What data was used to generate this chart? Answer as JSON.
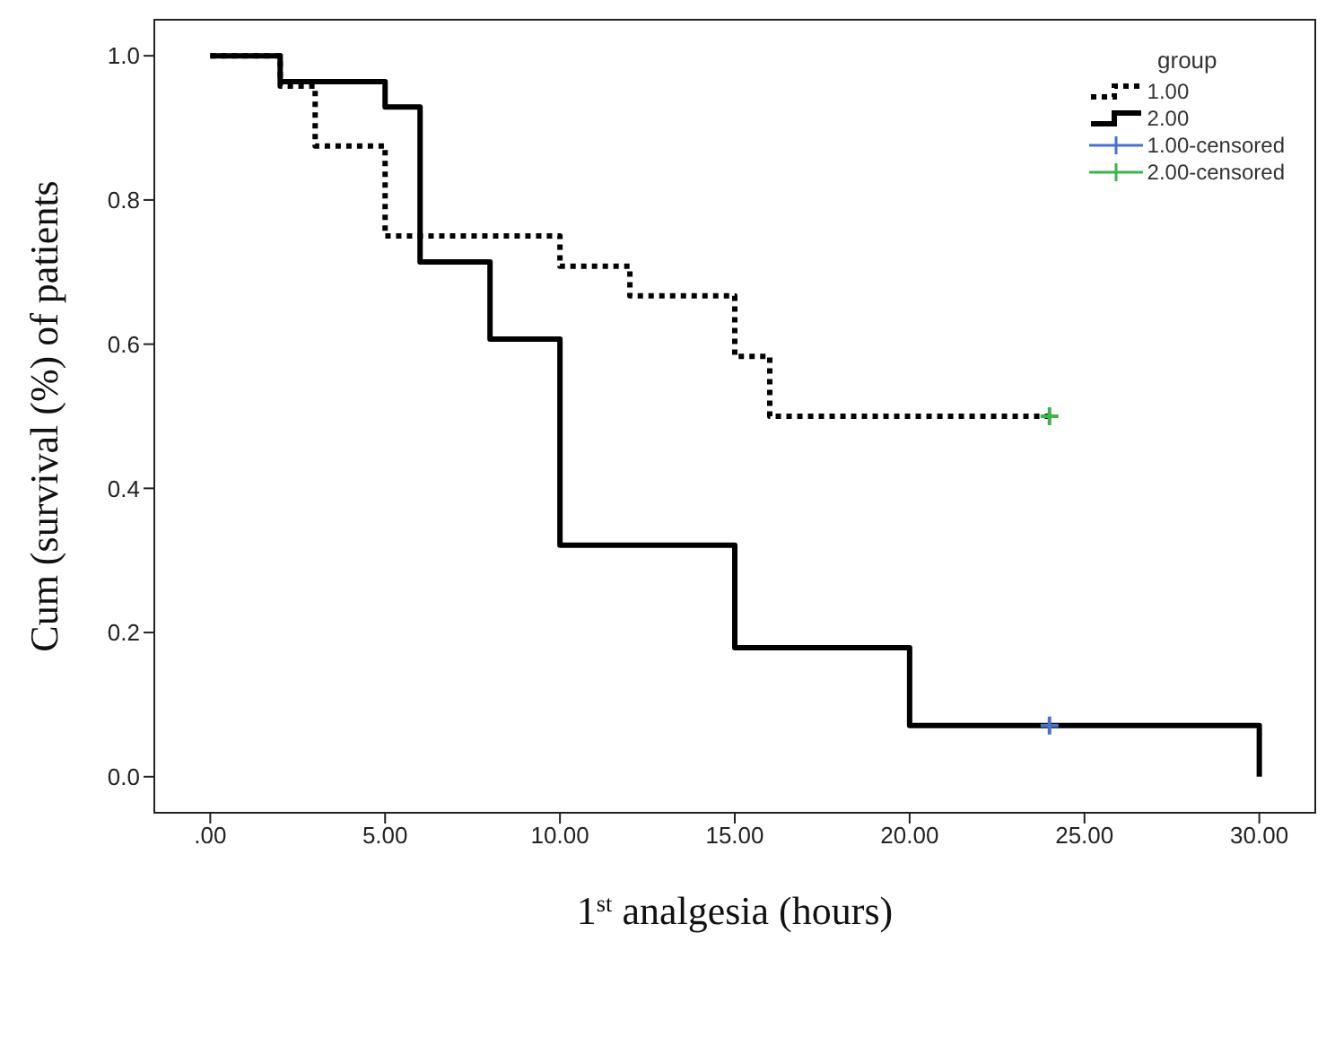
{
  "chart_data": {
    "type": "step",
    "xlabel": "1$^{st}$ analgesia (hours)",
    "ylabel": "Cum (survival (%) of patients",
    "legend_title": "group",
    "legend": "top right",
    "grid": false,
    "xlim": [
      -1.6,
      31.6
    ],
    "ylim": [
      -0.05,
      1.05
    ],
    "xticks": [
      {
        "value": 0,
        "label": ".00"
      },
      {
        "value": 5,
        "label": "5.00"
      },
      {
        "value": 10,
        "label": "10.00"
      },
      {
        "value": 15,
        "label": "15.00"
      },
      {
        "value": 20,
        "label": "20.00"
      },
      {
        "value": 25,
        "label": "25.00"
      },
      {
        "value": 30,
        "label": "30.00"
      }
    ],
    "yticks": [
      {
        "value": 0,
        "label": "0.0"
      },
      {
        "value": 0.2,
        "label": "0.2"
      },
      {
        "value": 0.4,
        "label": "0.4"
      },
      {
        "value": 0.6,
        "label": "0.6"
      },
      {
        "value": 0.8,
        "label": "0.8"
      },
      {
        "value": 1,
        "label": "1.0"
      }
    ],
    "series": [
      {
        "name": "1.00",
        "color": "#000000",
        "line_style": "dotted",
        "x": [
          0,
          2,
          3,
          5,
          10,
          12,
          15,
          16,
          24
        ],
        "values": [
          1.0,
          0.958,
          0.875,
          0.75,
          0.708,
          0.667,
          0.583,
          0.5,
          0.5
        ]
      },
      {
        "name": "2.00",
        "color": "#000000",
        "line_style": "solid",
        "x": [
          0,
          2,
          5,
          6,
          8,
          10,
          15,
          20,
          30,
          30
        ],
        "values": [
          1.0,
          0.964,
          0.929,
          0.714,
          0.607,
          0.321,
          0.179,
          0.071,
          0.071,
          0.0
        ]
      },
      {
        "name": "1.00-censored",
        "type": "scatter",
        "marker": "cross",
        "color": "#4a72c8",
        "x": [
          24
        ],
        "values": [
          0.071
        ]
      },
      {
        "name": "2.00-censored",
        "type": "scatter",
        "marker": "cross",
        "color": "#3cb44b",
        "x": [
          24
        ],
        "values": [
          0.5
        ]
      }
    ]
  }
}
